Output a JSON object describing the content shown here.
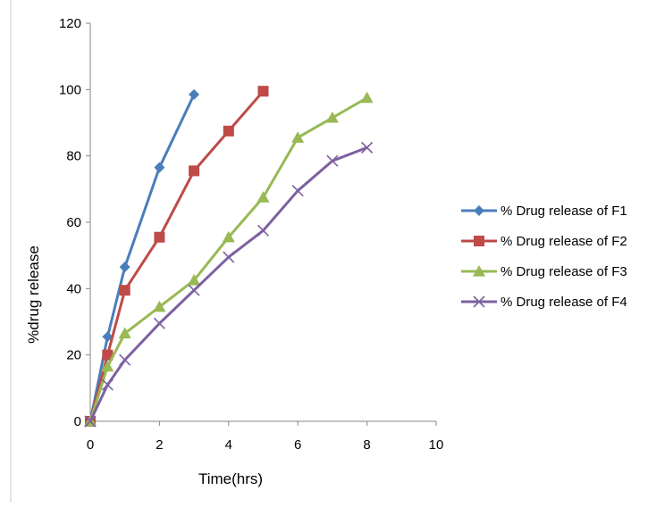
{
  "chart_data": {
    "type": "line",
    "title": "",
    "xlabel": "Time(hrs)",
    "ylabel": "%drug release",
    "xlim": [
      0,
      10
    ],
    "ylim": [
      0,
      120
    ],
    "xticks": [
      "0",
      "2",
      "4",
      "6",
      "8",
      "10"
    ],
    "yticks": [
      "0",
      "20",
      "40",
      "60",
      "80",
      "100",
      "120"
    ],
    "grid": false,
    "legend_position": "right",
    "series": [
      {
        "name": "% Drug release of F1",
        "color": "#4a7ebb",
        "marker": "diamond",
        "x": [
          0,
          0.5,
          1,
          2,
          3
        ],
        "y": [
          0,
          25.5,
          46.5,
          76.5,
          98.5
        ]
      },
      {
        "name": "% Drug release of F2",
        "color": "#be4b48",
        "marker": "square",
        "x": [
          0,
          0.5,
          1,
          2,
          3,
          4,
          5
        ],
        "y": [
          0,
          20,
          39.5,
          55.5,
          75.5,
          87.5,
          99.5
        ]
      },
      {
        "name": "% Drug release of F3",
        "color": "#98b954",
        "marker": "triangle",
        "x": [
          0,
          0.5,
          1,
          2,
          3,
          4,
          5,
          6,
          7,
          8
        ],
        "y": [
          0,
          16.5,
          26.5,
          34.5,
          42.5,
          55.5,
          67.5,
          85.5,
          91.5,
          97.5
        ]
      },
      {
        "name": "% Drug release of F4",
        "color": "#7d60a0",
        "marker": "x",
        "x": [
          0,
          0.5,
          1,
          2,
          3,
          4,
          5,
          6,
          7,
          8
        ],
        "y": [
          0,
          11,
          18.5,
          29.5,
          39.5,
          49.5,
          57.5,
          69.5,
          78.5,
          82.5
        ]
      }
    ]
  }
}
